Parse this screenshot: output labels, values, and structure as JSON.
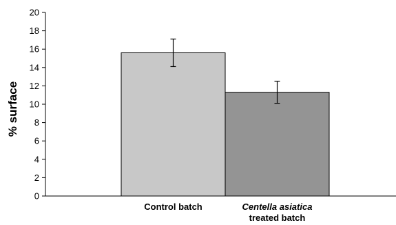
{
  "chart_data": {
    "type": "bar",
    "title": "",
    "xlabel": "",
    "ylabel": "% surface",
    "ylim": [
      0,
      20
    ],
    "yticks": [
      0,
      2,
      4,
      6,
      8,
      10,
      12,
      14,
      16,
      18,
      20
    ],
    "grid": false,
    "legend": "none",
    "categories": [
      {
        "lines": [
          {
            "text": "Control batch",
            "italic": false
          }
        ]
      },
      {
        "lines": [
          {
            "text": "Centella asiatica",
            "italic": true
          },
          {
            "text": "treated batch",
            "italic": false
          }
        ]
      }
    ],
    "values": [
      15.6,
      11.3
    ],
    "error": [
      1.5,
      1.2
    ],
    "colors": [
      "#c8c8c8",
      "#949494"
    ]
  }
}
